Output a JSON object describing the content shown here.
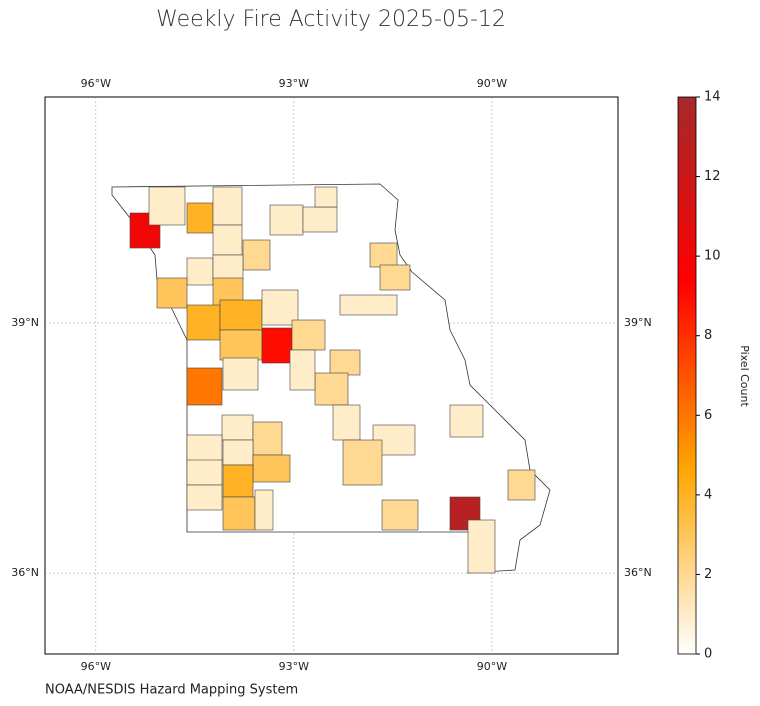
{
  "chart_data": {
    "type": "choropleth",
    "title": "Weekly Fire Activity 2025-05-12",
    "source": "NOAA/NESDIS Hazard Mapping System",
    "colorbar_label": "Pixel Count",
    "colorscale": [
      "#ffffff",
      "#ffa500",
      "#ff0000",
      "#a52a2a"
    ],
    "clim": [
      0,
      14
    ],
    "cticks": [
      0,
      2,
      4,
      6,
      8,
      10,
      12,
      14
    ],
    "xlim": [
      -96.77,
      -88.09
    ],
    "ylim": [
      35.03,
      41.71
    ],
    "xticks": [
      {
        "value": -96,
        "label": "96°W"
      },
      {
        "value": -93,
        "label": "93°W"
      },
      {
        "value": -90,
        "label": "90°W"
      }
    ],
    "yticks": [
      {
        "value": 39,
        "label": "39°N"
      },
      {
        "value": 36,
        "label": "36°N"
      }
    ],
    "grid": true,
    "values": [
      10,
      1,
      4,
      1,
      1,
      2,
      1,
      1,
      3,
      3,
      4,
      4,
      3,
      9,
      1,
      1,
      1,
      1,
      2,
      2,
      1,
      2,
      2,
      2,
      1,
      6,
      1,
      1,
      2,
      1,
      1,
      3,
      1,
      4,
      3,
      1,
      1,
      1,
      1,
      2,
      2,
      13,
      1,
      1,
      2
    ]
  }
}
